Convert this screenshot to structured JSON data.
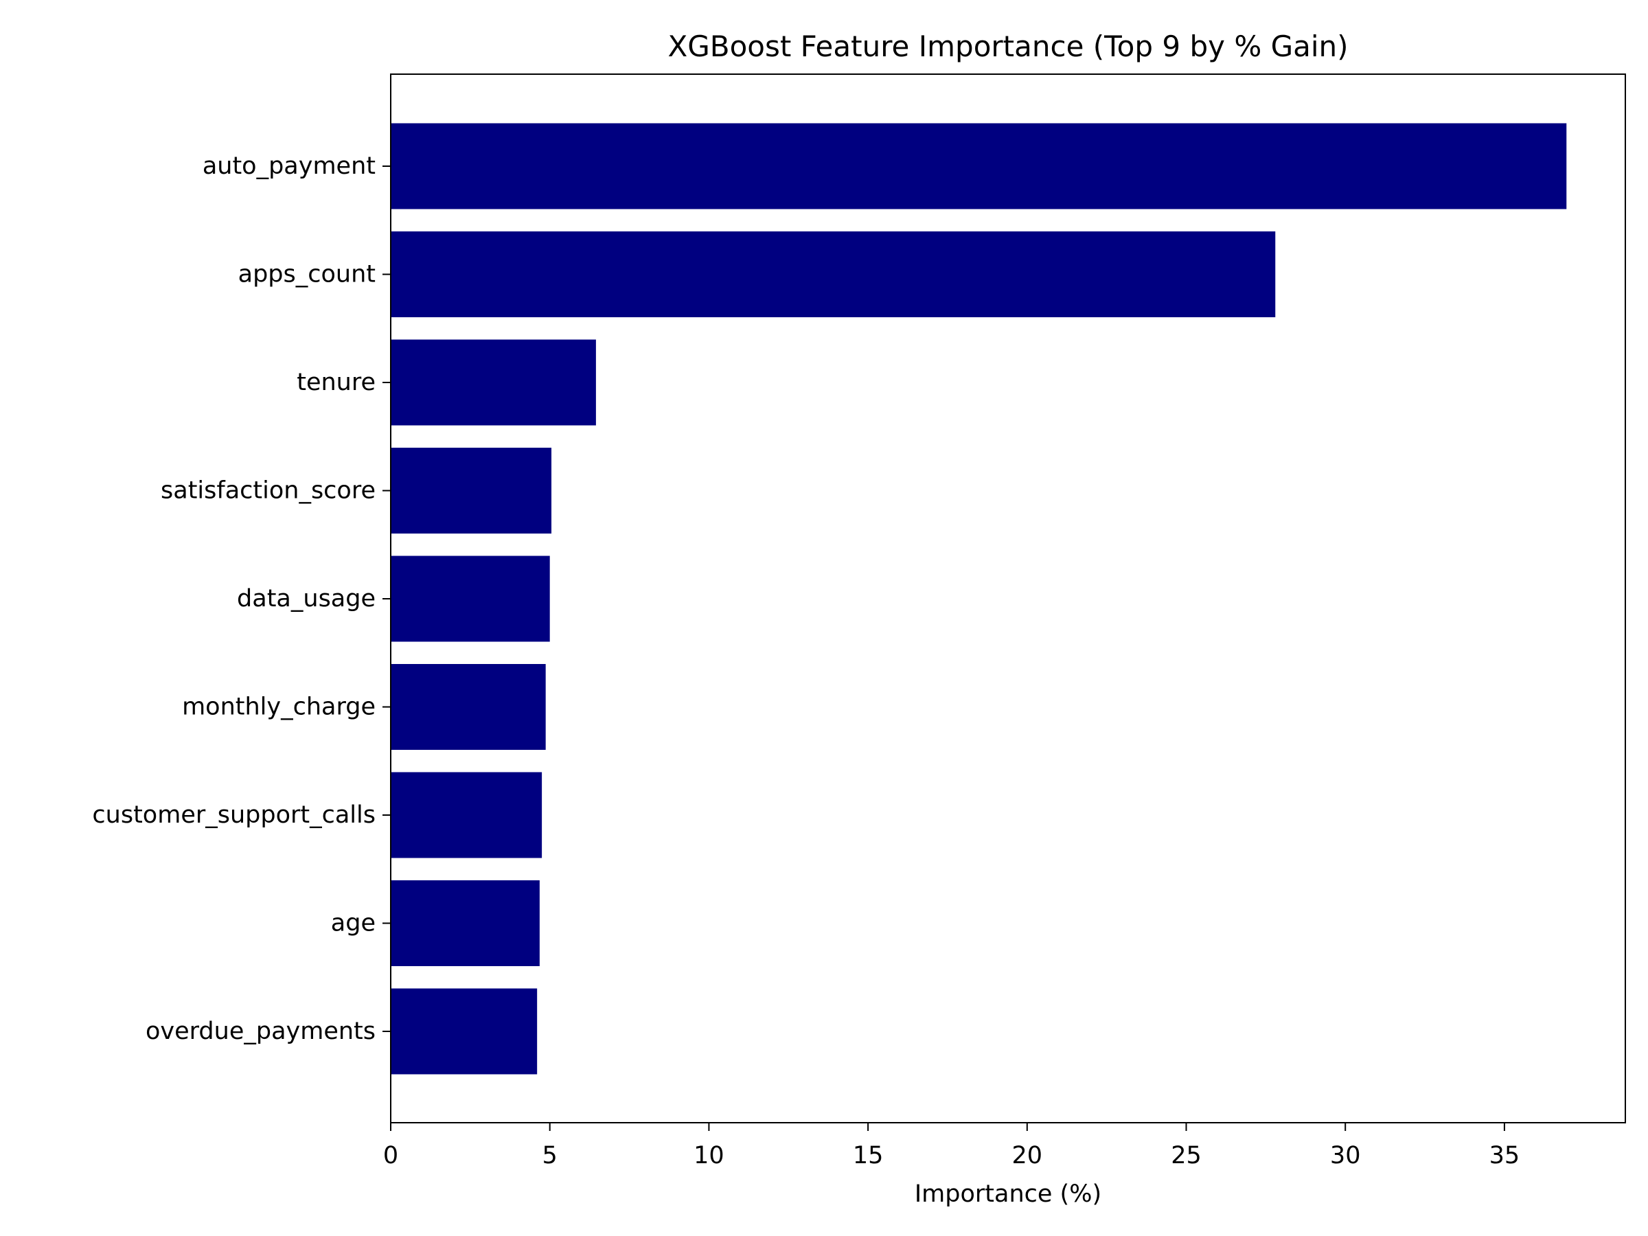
{
  "chart_data": {
    "type": "bar",
    "orientation": "horizontal",
    "title": "XGBoost Feature Importance (Top 9 by % Gain)",
    "xlabel": "Importance (%)",
    "ylabel": "",
    "categories": [
      "auto_payment",
      "apps_count",
      "tenure",
      "satisfaction_score",
      "data_usage",
      "monthly_charge",
      "customer_support_calls",
      "age",
      "overdue_payments"
    ],
    "values": [
      36.95,
      27.8,
      6.45,
      5.05,
      5.0,
      4.87,
      4.75,
      4.68,
      4.6
    ],
    "xlim": [
      0,
      38.8
    ],
    "xticks": [
      0,
      5,
      10,
      15,
      20,
      25,
      30,
      35
    ],
    "xtick_labels": [
      "0",
      "5",
      "10",
      "15",
      "20",
      "25",
      "30",
      "35"
    ],
    "grid": false,
    "legend": "none",
    "bar_color": "#000080"
  }
}
